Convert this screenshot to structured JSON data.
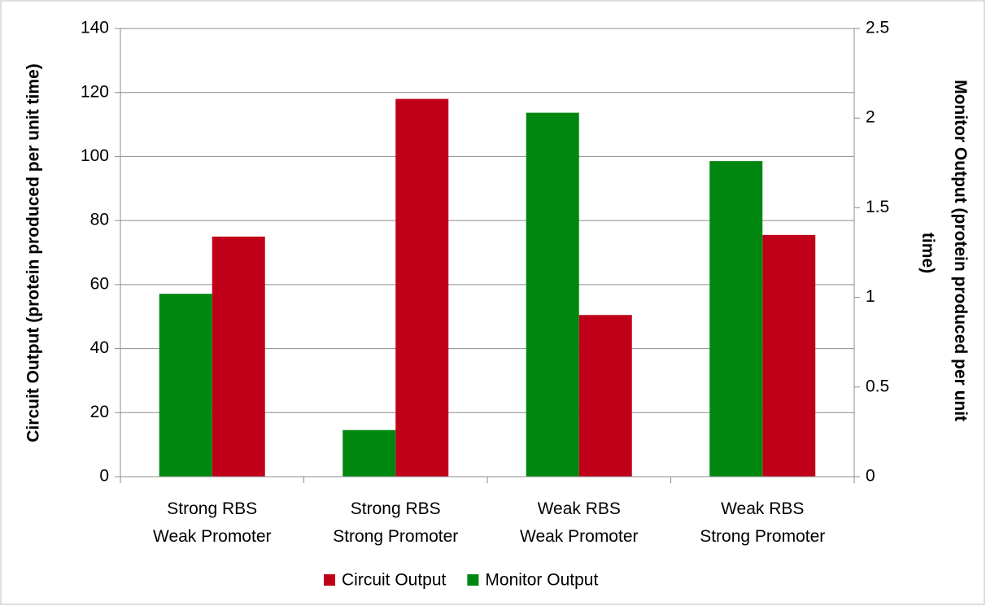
{
  "chart_data": {
    "type": "bar",
    "categories": [
      [
        "Strong RBS",
        "Weak Promoter"
      ],
      [
        "Strong RBS",
        "Strong Promoter"
      ],
      [
        "Weak RBS",
        "Weak Promoter"
      ],
      [
        "Weak RBS",
        "Strong Promoter"
      ]
    ],
    "series": [
      {
        "name": "Circuit Output",
        "color": "#c00018",
        "values": [
          75,
          118,
          50.5,
          75.5
        ]
      },
      {
        "name": "Monitor Output",
        "color": "#00870f",
        "axis": "y2",
        "values": [
          1.02,
          0.26,
          2.03,
          1.76
        ]
      }
    ],
    "ylabel": "Circuit Output (protein produced per unit time)",
    "y2label": [
      "Monitor Output (protein produced per unit",
      "time)"
    ],
    "ylim": [
      0,
      140
    ],
    "yticks": [
      0,
      20,
      40,
      60,
      80,
      100,
      120,
      140
    ],
    "y2lim": [
      0,
      2.5
    ],
    "y2ticks": [
      0,
      0.5,
      1,
      1.5,
      2,
      2.5
    ],
    "grid": true,
    "legend": "bottom"
  }
}
